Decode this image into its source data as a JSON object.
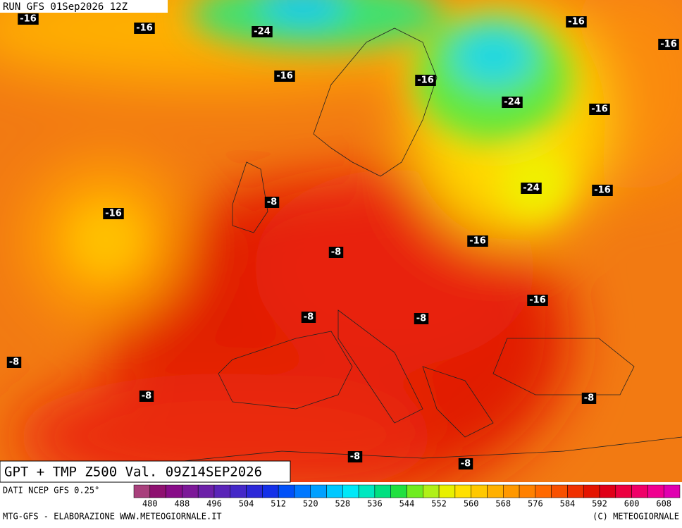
{
  "header": {
    "run": "RUN GFS 01Sep2026 12Z"
  },
  "map_title": "GPT + TMP Z500 Val. 09Z14SEP2026",
  "contour_labels": [
    -16,
    -16,
    -24,
    -16,
    -16,
    -16,
    -16,
    -24,
    -16,
    -24,
    -16,
    -16,
    -8,
    -8,
    -16,
    -8,
    -16,
    -8,
    -8,
    -8,
    -8,
    -8,
    -8
  ],
  "colorbar": {
    "source": "DATI NCEP GFS 0.25°",
    "colors": [
      "#a8407c",
      "#8e1070",
      "#880c88",
      "#7c1898",
      "#6c20a8",
      "#5a24b8",
      "#4428c8",
      "#2c28d8",
      "#1430e8",
      "#0050f8",
      "#0078ff",
      "#00a0ff",
      "#00c8ff",
      "#00e8f8",
      "#00e8c0",
      "#00e080",
      "#20e040",
      "#70ec20",
      "#b0f018",
      "#e8f000",
      "#ffe000",
      "#ffc800",
      "#ffb000",
      "#ff9800",
      "#ff8000",
      "#ff6800",
      "#f85000",
      "#f03000",
      "#e41400",
      "#e00018",
      "#ec0040",
      "#f00068",
      "#f00090",
      "#e000b0"
    ],
    "ticks": [
      480,
      488,
      496,
      504,
      512,
      520,
      528,
      536,
      544,
      552,
      560,
      568,
      576,
      584,
      592,
      600,
      608
    ]
  },
  "footer": {
    "left": "MTG-GFS - ELABORAZIONE WWW.METEOGIORNALE.IT",
    "right": "(C) METEOGIORNALE"
  }
}
